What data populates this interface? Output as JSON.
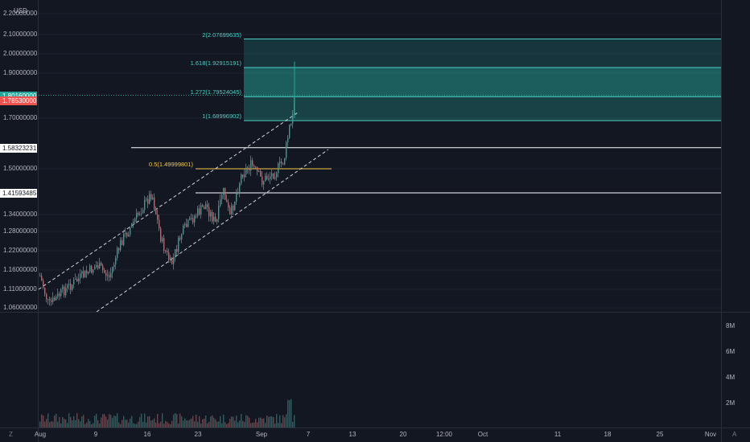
{
  "chart": {
    "currency": "USD",
    "price_axis_ticks": [
      {
        "value": 2.2,
        "label": "2.20000000"
      },
      {
        "value": 2.1,
        "label": "2.10000000"
      },
      {
        "value": 2.0,
        "label": "2.00000000"
      },
      {
        "value": 1.9,
        "label": "1.90000000"
      },
      {
        "value": 1.7,
        "label": "1.70000000"
      },
      {
        "value": 1.5,
        "label": "1.50000000"
      },
      {
        "value": 1.34,
        "label": "1.34000000"
      },
      {
        "value": 1.28,
        "label": "1.28000000"
      },
      {
        "value": 1.22,
        "label": "1.22000000"
      },
      {
        "value": 1.16,
        "label": "1.16000000"
      },
      {
        "value": 1.11,
        "label": "1.11000000"
      },
      {
        "value": 1.06,
        "label": "1.06000000"
      }
    ],
    "price_tags": [
      {
        "value": 1.8016,
        "label": "1.80160000",
        "bg": "#26a69a",
        "fg": "#ffffff"
      },
      {
        "value": 1.7853,
        "label": "1.78530000",
        "bg": "#ef5350",
        "fg": "#ffffff"
      },
      {
        "value": 1.58323231,
        "label": "1.58323231",
        "bg": "#ffffff",
        "fg": "#131722"
      },
      {
        "value": 1.41593485,
        "label": "1.41593485",
        "bg": "#ffffff",
        "fg": "#131722"
      }
    ],
    "fib_levels": [
      {
        "ratio": "2",
        "value": 2.07699635,
        "label": "2(2.07699635)"
      },
      {
        "ratio": "1.618",
        "value": 1.92915191,
        "label": "1.618(1.92915191)"
      },
      {
        "ratio": "1.272",
        "value": 1.79524045,
        "label": "1.272(1.79524045)"
      },
      {
        "ratio": "1",
        "value": 1.68996902,
        "label": "1(1.68996902)"
      }
    ],
    "fib_half": {
      "value": 1.49999801,
      "label": "0.5(1.49999801)"
    },
    "horizontal_lines": [
      1.58323231,
      1.41593485
    ],
    "volume_axis_ticks": [
      {
        "value": 8,
        "label": "8M"
      },
      {
        "value": 6,
        "label": "6M"
      },
      {
        "value": 4,
        "label": "4M"
      },
      {
        "value": 2,
        "label": "2M"
      }
    ],
    "time_axis_ticks": [
      "Aug",
      "9",
      "16",
      "23",
      "Sep",
      "7",
      "13",
      "20",
      "12:00",
      "Oct",
      "11",
      "18",
      "25",
      "Nov"
    ],
    "colors": {
      "up": "#26a69a",
      "down": "#ef5350",
      "fib": "#4dd0c4",
      "fib_half": "#f7c948",
      "grid": "#1e222d",
      "text": "#b2b5be"
    },
    "bottom_buttons": {
      "left": "Z",
      "right": "A"
    }
  }
}
